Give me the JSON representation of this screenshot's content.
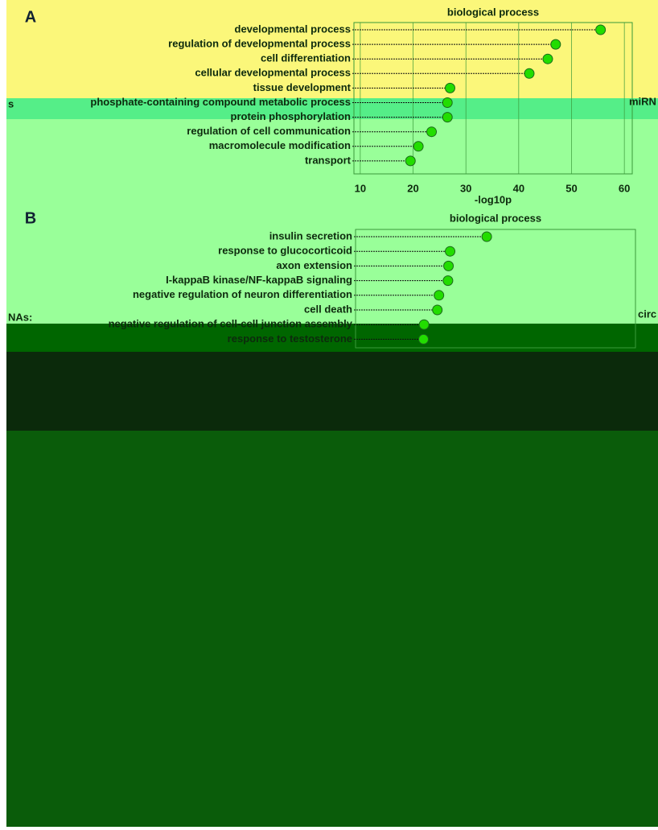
{
  "chart_data": [
    {
      "type": "dot",
      "panel": "A",
      "title": "biological process",
      "x_label": "-log10p",
      "categories": [
        "developmental process",
        "regulation of developmental process",
        "cell differentiation",
        "cellular developmental process",
        "tissue development",
        "phosphate-containing compound metabolic process",
        "protein phosphorylation",
        "regulation of cell communication",
        "macromolecule modification",
        "transport"
      ],
      "values": [
        55.5,
        47,
        45.5,
        42,
        27,
        26.5,
        26.5,
        23.5,
        21,
        19.5
      ],
      "color": "#22dd00",
      "xlim": [
        8.8,
        61.5
      ],
      "xticks": [
        10,
        20,
        30,
        40,
        50,
        60
      ],
      "grid": true
    },
    {
      "type": "dot",
      "panel": "B",
      "title": "biological process",
      "categories": [
        "insulin secretion",
        "response to glucocorticoid",
        "axon extension",
        "I-kappaB kinase/NF-kappaB signaling",
        "negative regulation of neuron differentiation",
        "cell death",
        "negative regulation of cell-cell junction assembly",
        "response to testosterone"
      ],
      "values": [
        33.5,
        26.6,
        26.3,
        26.2,
        24.5,
        24.2,
        21.7,
        21.6
      ],
      "color": "#22dd00",
      "xlim": [
        8.8,
        61.5
      ]
    }
  ],
  "side_labels": [
    "s",
    "miRN",
    "NAs:",
    "circ"
  ]
}
